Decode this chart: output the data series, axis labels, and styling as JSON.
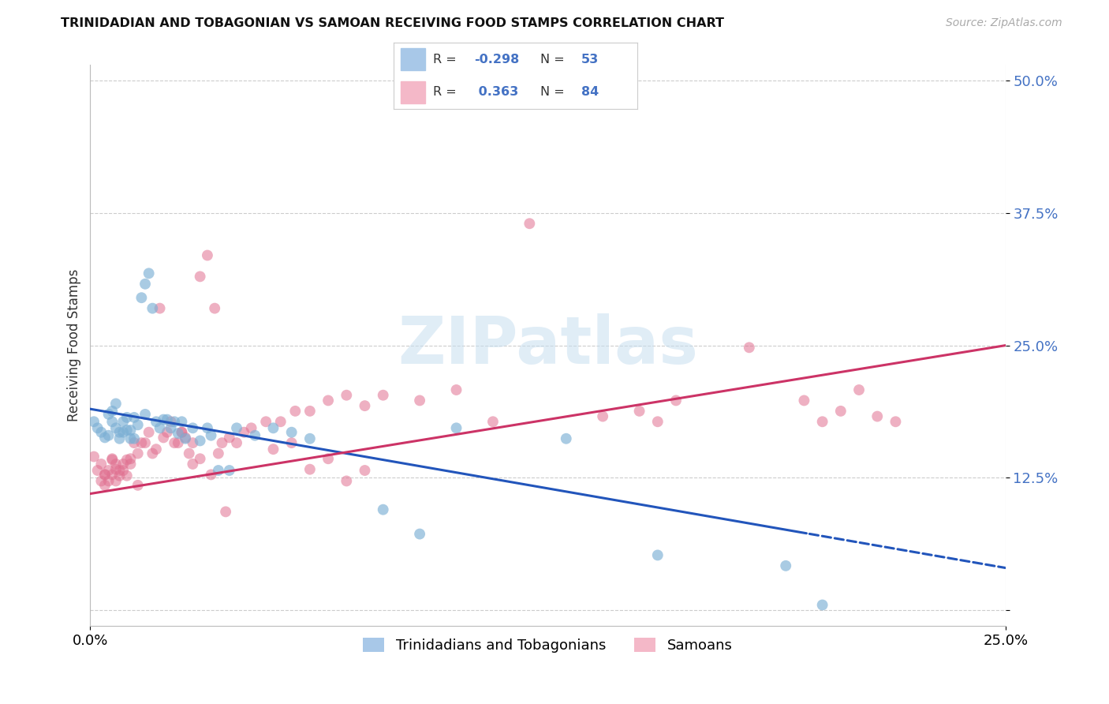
{
  "title": "TRINIDADIAN AND TOBAGONIAN VS SAMOAN RECEIVING FOOD STAMPS CORRELATION CHART",
  "source": "Source: ZipAtlas.com",
  "ylabel_label": "Receiving Food Stamps",
  "xlim": [
    0.0,
    0.25
  ],
  "ylim": [
    -0.015,
    0.515
  ],
  "yticks": [
    0.0,
    0.125,
    0.25,
    0.375,
    0.5
  ],
  "ytick_labels": [
    "",
    "12.5%",
    "25.0%",
    "37.5%",
    "50.0%"
  ],
  "xticks": [
    0.0,
    0.25
  ],
  "xtick_labels": [
    "0.0%",
    "25.0%"
  ],
  "legend_label1": "Trinidadians and Tobagonians",
  "legend_label2": "Samoans",
  "blue_scatter_color": "#7bafd4",
  "pink_scatter_color": "#e07090",
  "blue_line_color": "#2255bb",
  "pink_line_color": "#cc3366",
  "blue_legend_color": "#a8c8e8",
  "pink_legend_color": "#f4b8c8",
  "watermark_text": "ZIPatlas",
  "blue_intercept": 0.19,
  "blue_slope": -0.6,
  "pink_intercept": 0.11,
  "pink_slope": 0.56,
  "blue_x": [
    0.001,
    0.002,
    0.003,
    0.004,
    0.005,
    0.005,
    0.006,
    0.006,
    0.007,
    0.007,
    0.008,
    0.008,
    0.009,
    0.009,
    0.01,
    0.01,
    0.011,
    0.011,
    0.012,
    0.012,
    0.013,
    0.014,
    0.015,
    0.015,
    0.016,
    0.017,
    0.018,
    0.019,
    0.02,
    0.021,
    0.022,
    0.023,
    0.024,
    0.025,
    0.026,
    0.028,
    0.03,
    0.032,
    0.033,
    0.035,
    0.038,
    0.04,
    0.045,
    0.05,
    0.055,
    0.06,
    0.08,
    0.09,
    0.1,
    0.13,
    0.155,
    0.19,
    0.2
  ],
  "blue_y": [
    0.178,
    0.172,
    0.168,
    0.163,
    0.185,
    0.165,
    0.178,
    0.188,
    0.195,
    0.172,
    0.168,
    0.162,
    0.178,
    0.168,
    0.182,
    0.17,
    0.162,
    0.17,
    0.182,
    0.162,
    0.175,
    0.295,
    0.308,
    0.185,
    0.318,
    0.285,
    0.178,
    0.172,
    0.18,
    0.18,
    0.172,
    0.178,
    0.167,
    0.178,
    0.162,
    0.172,
    0.16,
    0.172,
    0.165,
    0.132,
    0.132,
    0.172,
    0.165,
    0.172,
    0.168,
    0.162,
    0.095,
    0.072,
    0.172,
    0.162,
    0.052,
    0.042,
    0.005
  ],
  "pink_x": [
    0.001,
    0.002,
    0.003,
    0.003,
    0.004,
    0.004,
    0.005,
    0.005,
    0.006,
    0.006,
    0.007,
    0.007,
    0.008,
    0.008,
    0.009,
    0.009,
    0.01,
    0.01,
    0.011,
    0.011,
    0.012,
    0.013,
    0.014,
    0.015,
    0.016,
    0.017,
    0.018,
    0.019,
    0.02,
    0.021,
    0.022,
    0.023,
    0.024,
    0.025,
    0.026,
    0.027,
    0.028,
    0.03,
    0.032,
    0.034,
    0.036,
    0.038,
    0.04,
    0.042,
    0.044,
    0.048,
    0.052,
    0.056,
    0.06,
    0.065,
    0.07,
    0.075,
    0.08,
    0.09,
    0.1,
    0.11,
    0.12,
    0.14,
    0.16,
    0.18,
    0.195,
    0.2,
    0.205,
    0.21,
    0.215,
    0.22,
    0.15,
    0.155,
    0.025,
    0.028,
    0.033,
    0.037,
    0.05,
    0.055,
    0.06,
    0.065,
    0.07,
    0.075,
    0.03,
    0.035,
    0.004,
    0.006,
    0.007,
    0.013
  ],
  "pink_y": [
    0.145,
    0.132,
    0.122,
    0.138,
    0.128,
    0.118,
    0.132,
    0.122,
    0.142,
    0.128,
    0.138,
    0.122,
    0.132,
    0.127,
    0.138,
    0.132,
    0.142,
    0.127,
    0.138,
    0.143,
    0.158,
    0.148,
    0.158,
    0.158,
    0.168,
    0.148,
    0.152,
    0.285,
    0.163,
    0.168,
    0.178,
    0.158,
    0.158,
    0.168,
    0.163,
    0.148,
    0.158,
    0.315,
    0.335,
    0.285,
    0.158,
    0.163,
    0.158,
    0.168,
    0.172,
    0.178,
    0.178,
    0.188,
    0.188,
    0.198,
    0.203,
    0.193,
    0.203,
    0.198,
    0.208,
    0.178,
    0.365,
    0.183,
    0.198,
    0.248,
    0.198,
    0.178,
    0.188,
    0.208,
    0.183,
    0.178,
    0.188,
    0.178,
    0.168,
    0.138,
    0.128,
    0.093,
    0.152,
    0.158,
    0.133,
    0.143,
    0.122,
    0.132,
    0.143,
    0.148,
    0.128,
    0.143,
    0.133,
    0.118
  ]
}
